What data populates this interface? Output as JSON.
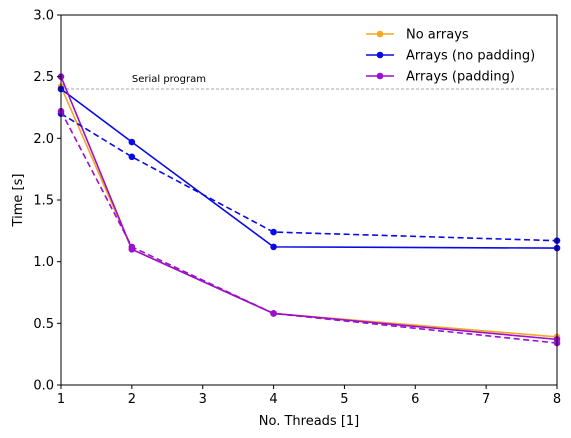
{
  "chart_data": {
    "type": "line",
    "title": "",
    "xlabel": "No. Threads [1]",
    "ylabel": "Time [s]",
    "xlim": [
      1,
      8
    ],
    "ylim": [
      0,
      3.0
    ],
    "x_ticks": [
      1,
      2,
      3,
      4,
      5,
      6,
      7,
      8
    ],
    "y_ticks": [
      0.0,
      0.5,
      1.0,
      1.5,
      2.0,
      2.5,
      3.0
    ],
    "x_tick_labels": [
      "1",
      "2",
      "3",
      "4",
      "5",
      "6",
      "7",
      "8"
    ],
    "y_tick_labels": [
      "0.0",
      "0.5",
      "1.0",
      "1.5",
      "2.0",
      "2.5",
      "3.0"
    ],
    "grid": false,
    "legend_position": "top-right",
    "reference_line": {
      "label": "Serial program",
      "y": 2.4,
      "color": "#888888"
    },
    "series": [
      {
        "name": "No arrays",
        "color": "#f5a623",
        "style": "solid",
        "legend": true,
        "x": [
          1,
          2,
          4,
          8
        ],
        "y": [
          2.42,
          1.1,
          0.58,
          0.39
        ]
      },
      {
        "name": "Arrays (no padding)",
        "color": "#0a0ae6",
        "style": "solid",
        "legend": true,
        "x": [
          1,
          2,
          4,
          8
        ],
        "y": [
          2.4,
          1.97,
          1.12,
          1.11
        ]
      },
      {
        "name": "Arrays (padding)",
        "color": "#9a0fd0",
        "style": "solid",
        "legend": true,
        "x": [
          1,
          2,
          4,
          8
        ],
        "y": [
          2.5,
          1.1,
          0.58,
          0.37
        ]
      },
      {
        "name": "",
        "color": "#0a0ae6",
        "style": "dashed",
        "legend": false,
        "x": [
          1,
          2,
          4,
          8
        ],
        "y": [
          2.2,
          1.85,
          1.24,
          1.17
        ]
      },
      {
        "name": "",
        "color": "#9a0fd0",
        "style": "dashed",
        "legend": false,
        "x": [
          1,
          2,
          4,
          8
        ],
        "y": [
          2.22,
          1.12,
          0.58,
          0.34
        ]
      }
    ]
  }
}
